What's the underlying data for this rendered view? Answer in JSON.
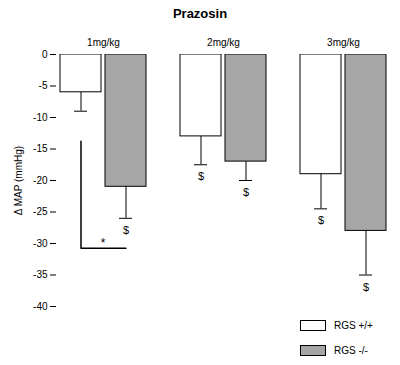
{
  "chart_data": {
    "type": "bar",
    "title": "Prazosin",
    "categories": [
      "1mg/kg",
      "2mg/kg",
      "3mg/kg"
    ],
    "ylabel": "Δ MAP (mmHg)",
    "ylim": [
      -40,
      0
    ],
    "yticks": [
      0,
      -5,
      -10,
      -15,
      -20,
      -25,
      -30,
      -35,
      -40
    ],
    "legend": "bottom-right",
    "series": [
      {
        "name": "RGS +/+",
        "color": "#ffffff",
        "values": [
          -6,
          -13,
          -19
        ],
        "errors": [
          3,
          4.5,
          5.5
        ],
        "marks": [
          null,
          "$",
          "$"
        ]
      },
      {
        "name": "RGS -/-",
        "color": "#a6a6a6",
        "values": [
          -21,
          -17,
          -28
        ],
        "errors": [
          5,
          3,
          7
        ],
        "marks": [
          "$",
          "$",
          "$"
        ]
      }
    ],
    "comparisons": [
      {
        "category": "1mg/kg",
        "text": "*"
      }
    ]
  }
}
